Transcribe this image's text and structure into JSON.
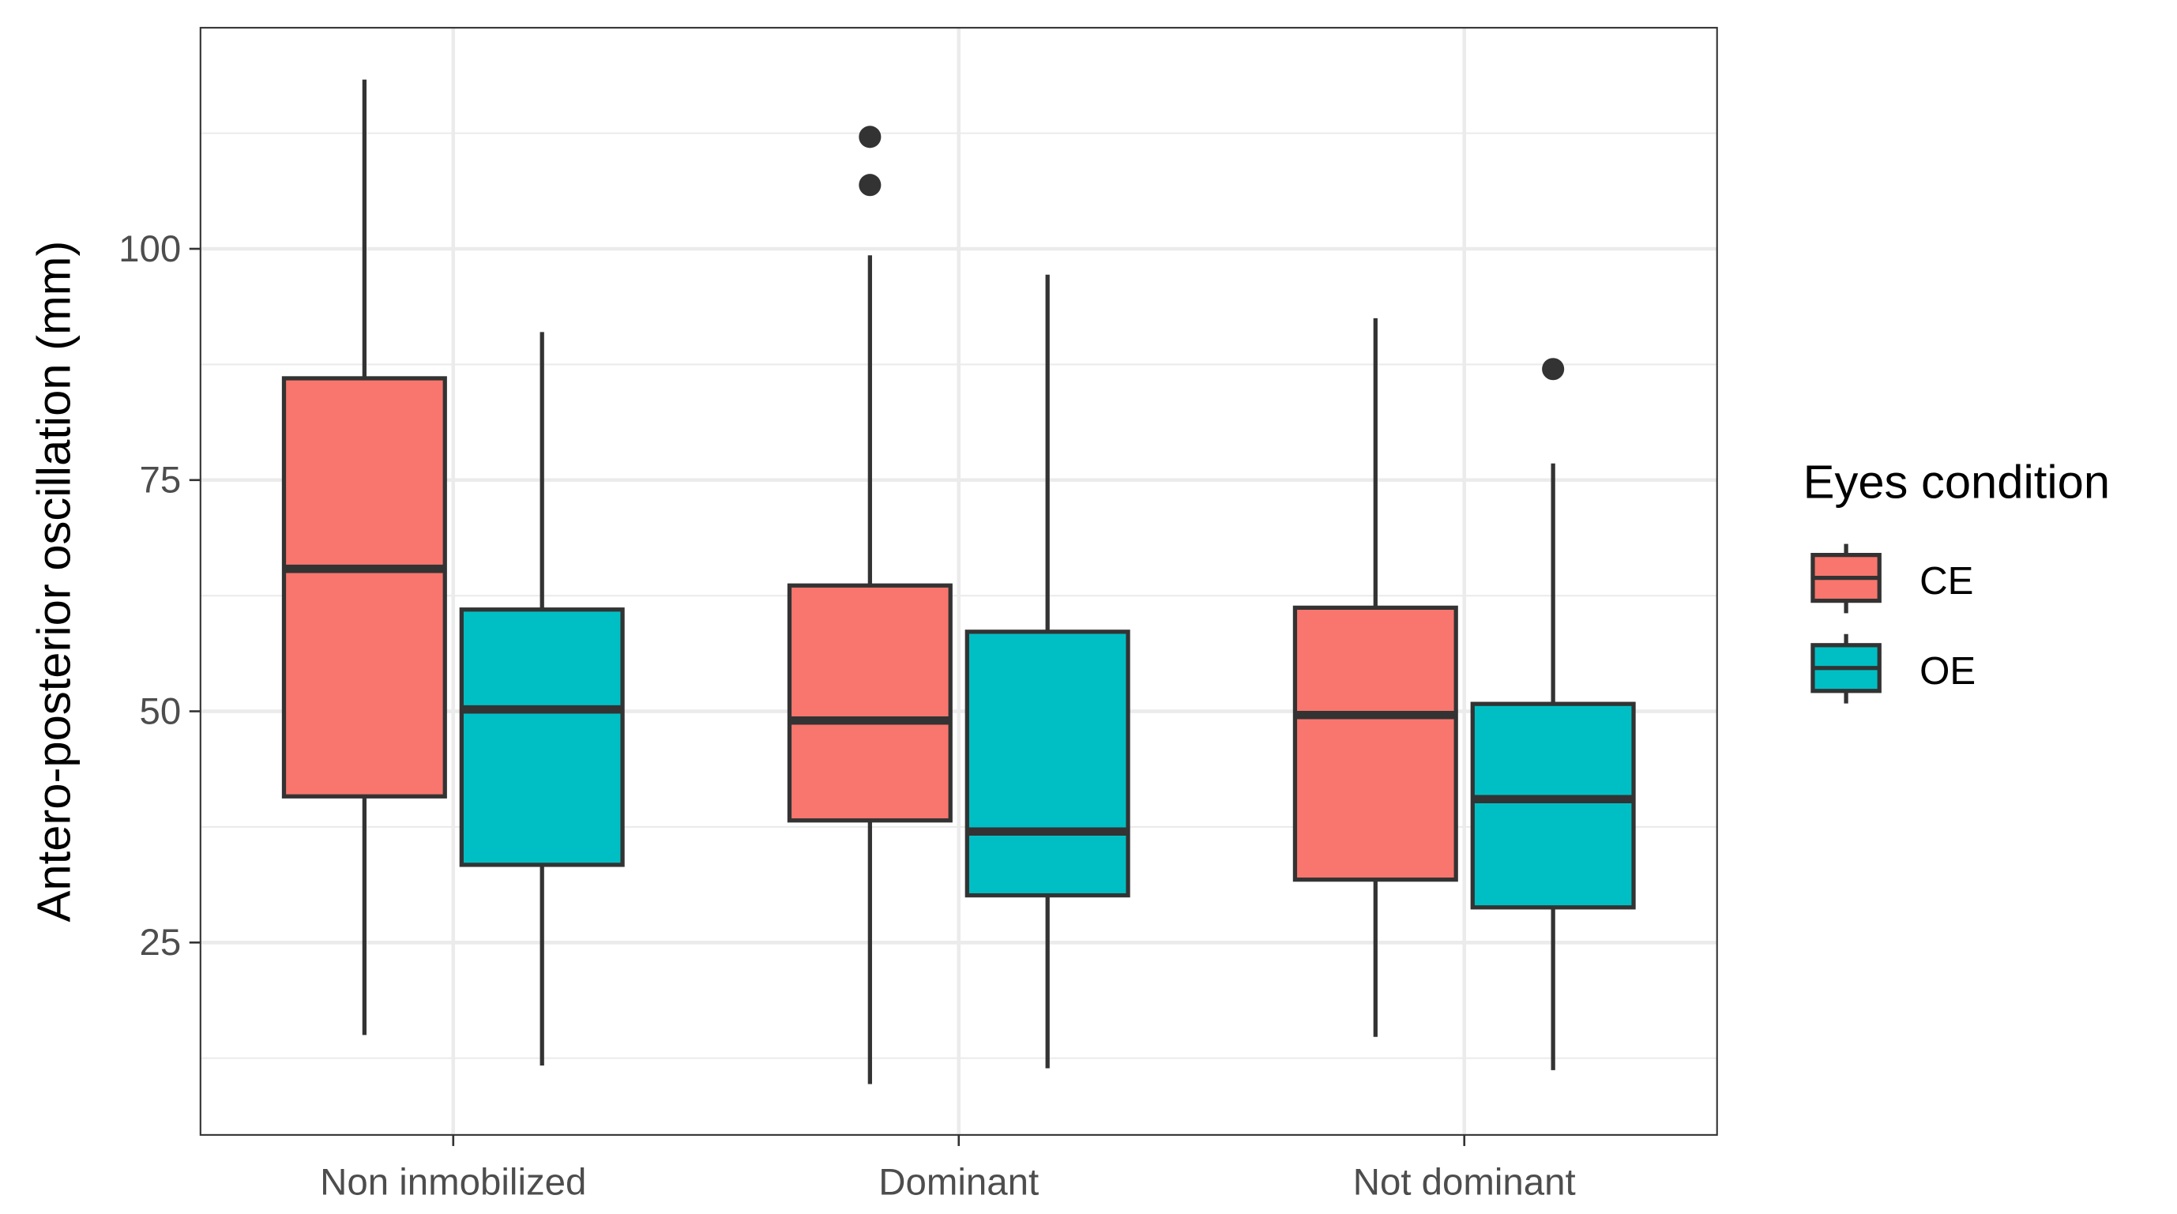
{
  "chart_data": {
    "type": "boxplot",
    "title": "",
    "xlabel": "",
    "ylabel": "Antero-posterior oscillation (mm)",
    "ylim": [
      4.2,
      123.9
    ],
    "yticks": [
      25,
      50,
      75,
      100
    ],
    "grid": true,
    "categories": [
      "Non inmobilized",
      "Dominant",
      "Not dominant"
    ],
    "legend": {
      "title": "Eyes condition",
      "position": "right"
    },
    "series": [
      {
        "name": "CE",
        "color": "#F8766D",
        "boxes": [
          {
            "min": 15.0,
            "q1": 40.8,
            "median": 65.4,
            "q3": 86.0,
            "max": 118.3,
            "outliers": []
          },
          {
            "min": 9.7,
            "q1": 38.2,
            "median": 49.0,
            "q3": 63.6,
            "max": 99.3,
            "outliers": [
              112.1,
              106.9
            ]
          },
          {
            "min": 14.8,
            "q1": 31.8,
            "median": 49.6,
            "q3": 61.2,
            "max": 92.5,
            "outliers": []
          }
        ]
      },
      {
        "name": "OE",
        "color": "#00BFC4",
        "boxes": [
          {
            "min": 11.7,
            "q1": 33.4,
            "median": 50.2,
            "q3": 61.0,
            "max": 91.0,
            "outliers": []
          },
          {
            "min": 11.4,
            "q1": 30.1,
            "median": 37.0,
            "q3": 58.6,
            "max": 97.2,
            "outliers": []
          },
          {
            "min": 11.2,
            "q1": 28.8,
            "median": 40.5,
            "q3": 50.8,
            "max": 76.8,
            "outliers": [
              87.0
            ]
          }
        ]
      }
    ]
  }
}
